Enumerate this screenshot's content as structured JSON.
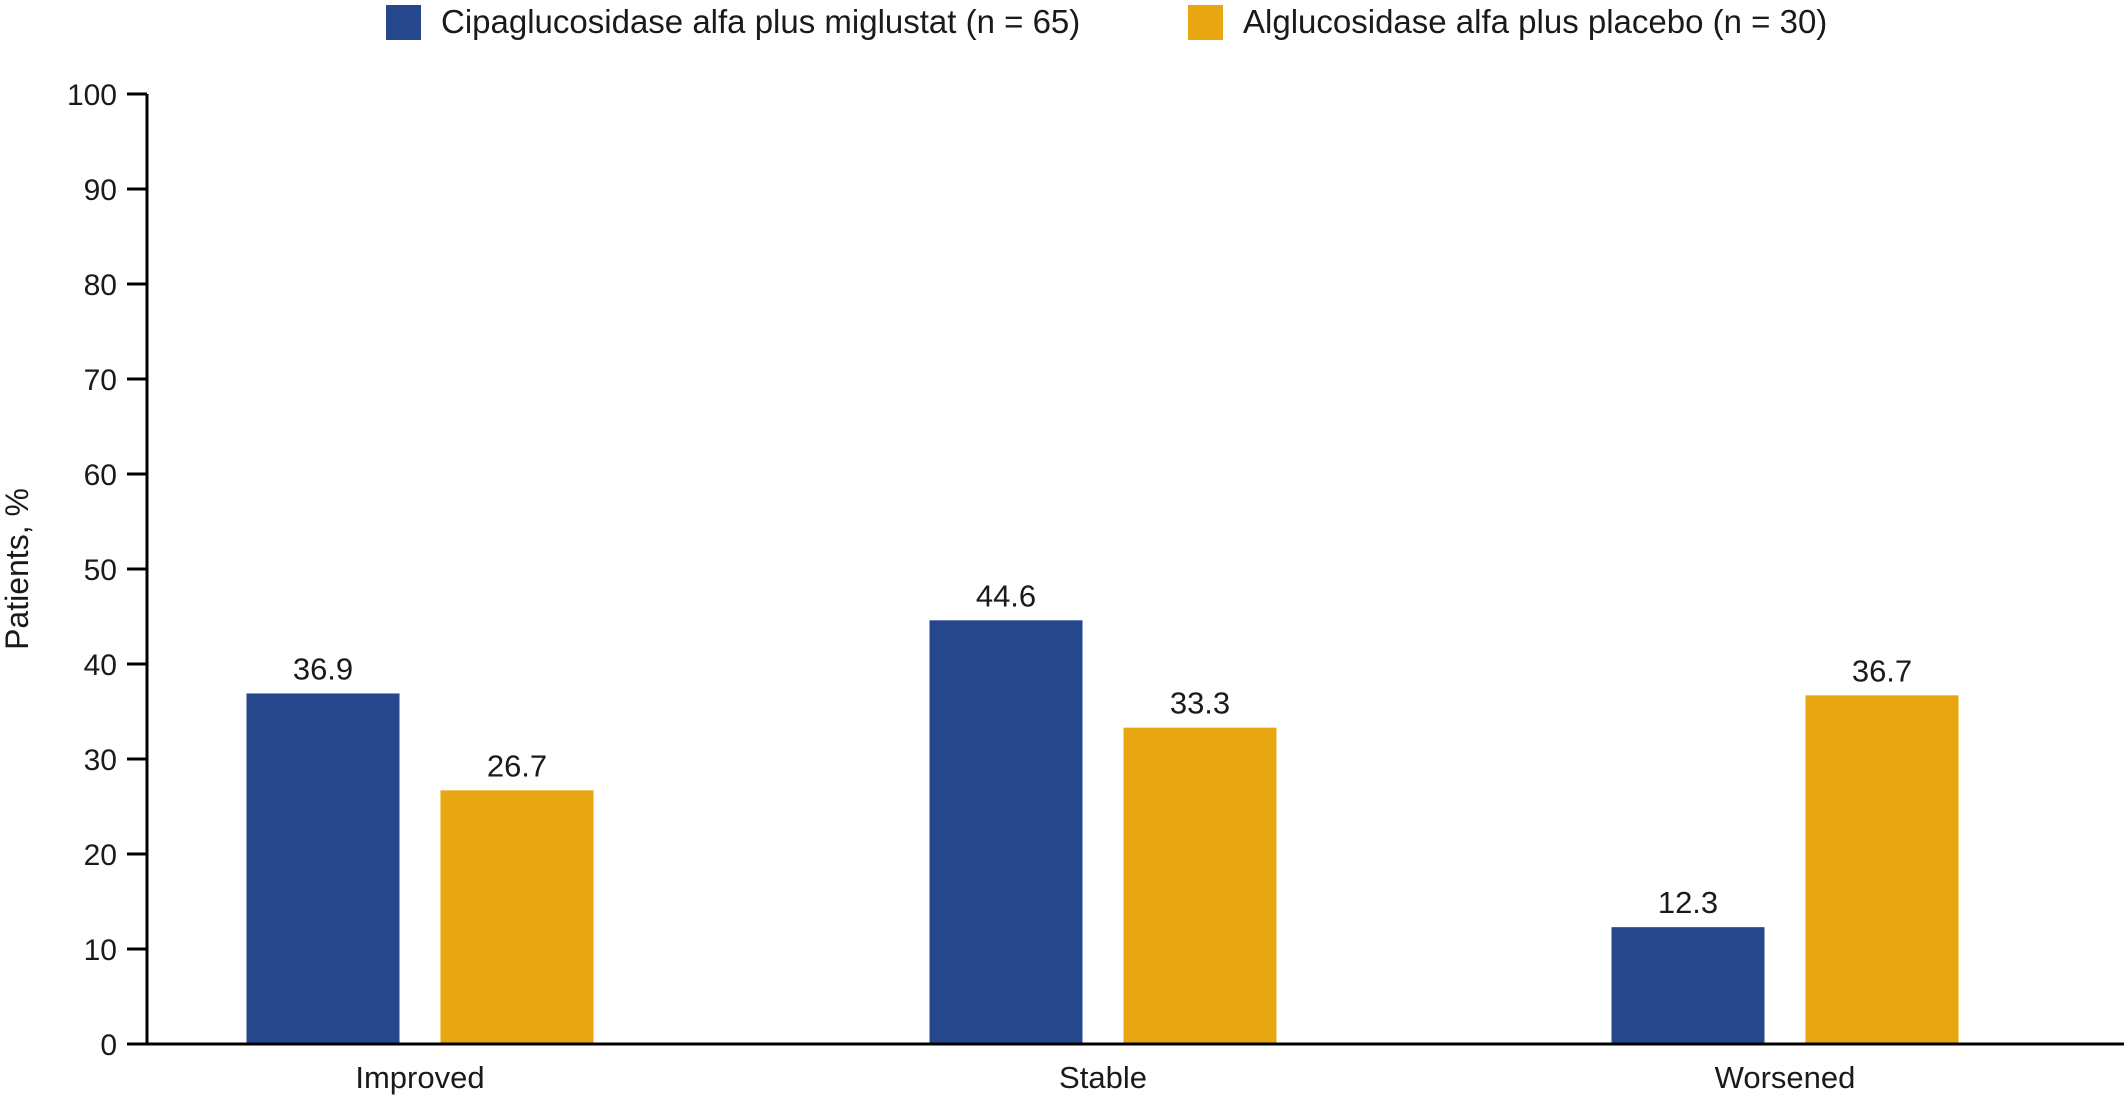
{
  "chart_data": {
    "type": "bar",
    "categories": [
      "Improved",
      "Stable",
      "Worsened"
    ],
    "series": [
      {
        "name": "Cipaglucosidase alfa plus miglustat (n = 65)",
        "values": [
          36.9,
          44.6,
          12.3
        ],
        "color": "#26478c"
      },
      {
        "name": "Alglucosidase alfa plus placebo (n = 30)",
        "values": [
          26.7,
          33.3,
          36.7
        ],
        "color": "#e8a711"
      }
    ],
    "data_labels": [
      [
        "36.9",
        "44.6",
        "12.3"
      ],
      [
        "26.7",
        "33.3",
        "36.7"
      ]
    ],
    "ylabel": "Patients, %",
    "xlabel": "",
    "ylim": [
      0,
      100
    ],
    "yticks": [
      0,
      10,
      20,
      30,
      40,
      50,
      60,
      70,
      80,
      90,
      100
    ],
    "grid": false,
    "legend_position": "top"
  }
}
